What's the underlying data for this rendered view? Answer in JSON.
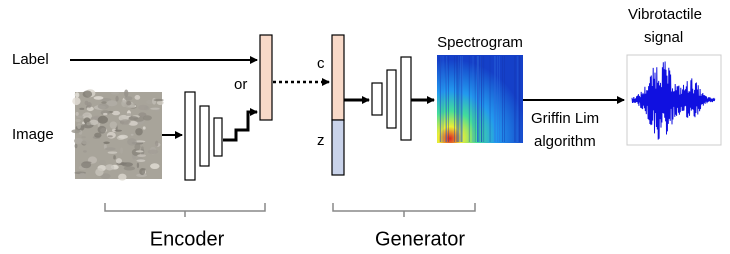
{
  "inputs": {
    "label": "Label",
    "image": "Image",
    "or": "or"
  },
  "latent": {
    "c": "c",
    "z": "z"
  },
  "spectrogram": "Spectrogram",
  "griffin_lim": [
    "Griffin Lim",
    "algorithm"
  ],
  "output": [
    "Vibrotactile",
    "signal"
  ],
  "blocks": {
    "encoder": "Encoder",
    "generator": "Generator"
  }
}
